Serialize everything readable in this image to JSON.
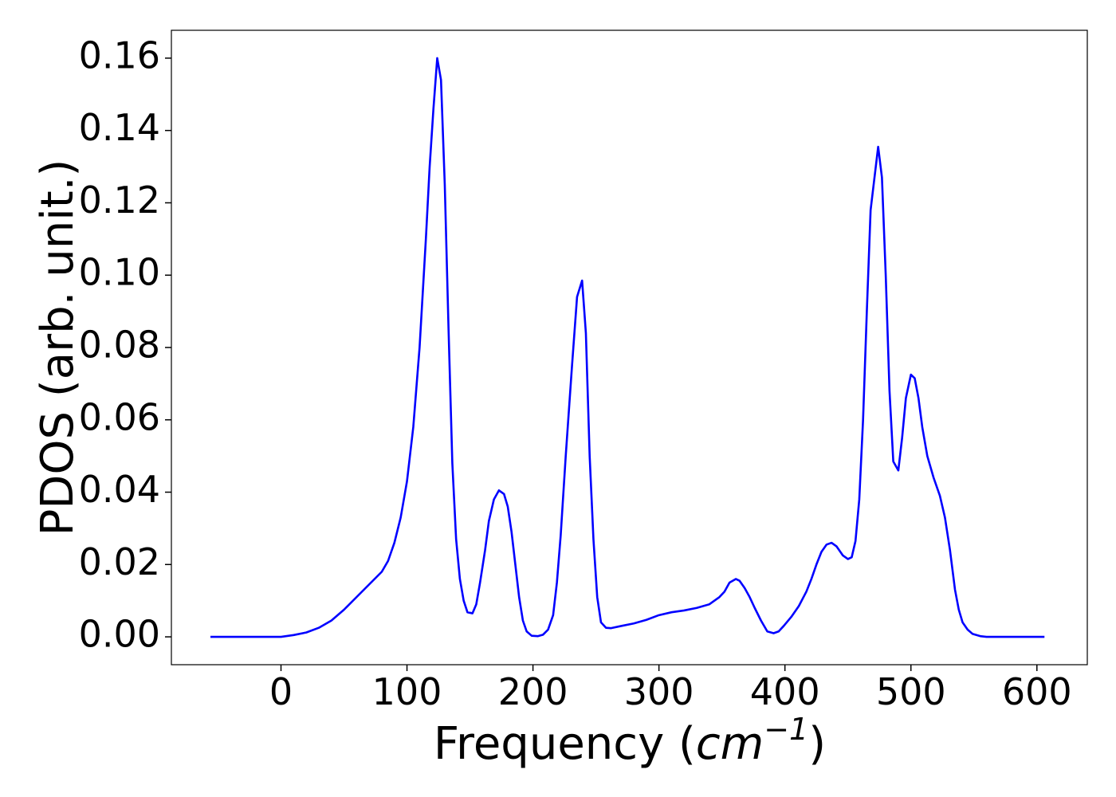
{
  "chart_data": {
    "type": "line",
    "xlabel": [
      "Frequency (",
      "cm",
      "−1",
      ")"
    ],
    "ylabel": "PDOS (arb. unit.)",
    "xlim": [
      -87,
      640
    ],
    "ylim": [
      -0.0077,
      0.1677
    ],
    "xticks": [
      0,
      100,
      200,
      300,
      400,
      500,
      600
    ],
    "yticks": [
      {
        "value": 0,
        "label": "0.00"
      },
      {
        "value": 0.02,
        "label": "0.02"
      },
      {
        "value": 0.04,
        "label": "0.04"
      },
      {
        "value": 0.06,
        "label": "0.06"
      },
      {
        "value": 0.08,
        "label": "0.08"
      },
      {
        "value": 0.1,
        "label": "0.10"
      },
      {
        "value": 0.12,
        "label": "0.12"
      },
      {
        "value": 0.14,
        "label": "0.14"
      },
      {
        "value": 0.16,
        "label": "0.16"
      }
    ],
    "grid": false,
    "x": [
      -56,
      -40,
      -20,
      0,
      10,
      20,
      30,
      40,
      50,
      60,
      70,
      80,
      85,
      90,
      95,
      100,
      105,
      110,
      115,
      118,
      121,
      124,
      127,
      130,
      133,
      136,
      139,
      142,
      145,
      148,
      152,
      155,
      158,
      162,
      165,
      169,
      173,
      177,
      180,
      183,
      186,
      189,
      192,
      195,
      199,
      204,
      208,
      212,
      216,
      219,
      222,
      226,
      231,
      235,
      239,
      242,
      245,
      248,
      251,
      254,
      258,
      262,
      270,
      280,
      290,
      300,
      310,
      320,
      330,
      340,
      348,
      352,
      356,
      361,
      364,
      368,
      372,
      376,
      381,
      386,
      391,
      395,
      399,
      405,
      411,
      417,
      421,
      425,
      429,
      433,
      437,
      441,
      446,
      450,
      453,
      456,
      459,
      462,
      465,
      468,
      474,
      477,
      480,
      483,
      486,
      490,
      493,
      496,
      500,
      503,
      506,
      509,
      513,
      518,
      523,
      527,
      531,
      535,
      538,
      541,
      545,
      549,
      555,
      560,
      606
    ],
    "series": [
      {
        "name": "PDOS",
        "color": "#0000ff",
        "values": [
          0,
          0,
          0,
          0,
          0.0005,
          0.0012,
          0.0025,
          0.0045,
          0.0075,
          0.011,
          0.0145,
          0.018,
          0.021,
          0.026,
          0.033,
          0.043,
          0.058,
          0.08,
          0.11,
          0.13,
          0.146,
          0.16,
          0.154,
          0.125,
          0.085,
          0.048,
          0.027,
          0.016,
          0.01,
          0.0068,
          0.0065,
          0.009,
          0.015,
          0.024,
          0.032,
          0.038,
          0.0405,
          0.0395,
          0.036,
          0.029,
          0.02,
          0.011,
          0.0045,
          0.0015,
          0.0003,
          0.0002,
          0.0006,
          0.002,
          0.006,
          0.015,
          0.028,
          0.05,
          0.075,
          0.094,
          0.0985,
          0.084,
          0.05,
          0.027,
          0.011,
          0.004,
          0.0025,
          0.0024,
          0.003,
          0.0037,
          0.0047,
          0.006,
          0.0068,
          0.0073,
          0.008,
          0.009,
          0.011,
          0.0125,
          0.015,
          0.016,
          0.0155,
          0.0135,
          0.011,
          0.008,
          0.0045,
          0.0015,
          0.001,
          0.0015,
          0.003,
          0.0055,
          0.0085,
          0.0125,
          0.016,
          0.02,
          0.0235,
          0.0255,
          0.026,
          0.025,
          0.0225,
          0.0215,
          0.022,
          0.0265,
          0.038,
          0.06,
          0.09,
          0.118,
          0.1355,
          0.127,
          0.1,
          0.068,
          0.0485,
          0.046,
          0.055,
          0.066,
          0.0725,
          0.0715,
          0.066,
          0.058,
          0.05,
          0.044,
          0.039,
          0.033,
          0.024,
          0.013,
          0.0075,
          0.004,
          0.002,
          0.0008,
          0.0002,
          0,
          0
        ]
      }
    ]
  }
}
